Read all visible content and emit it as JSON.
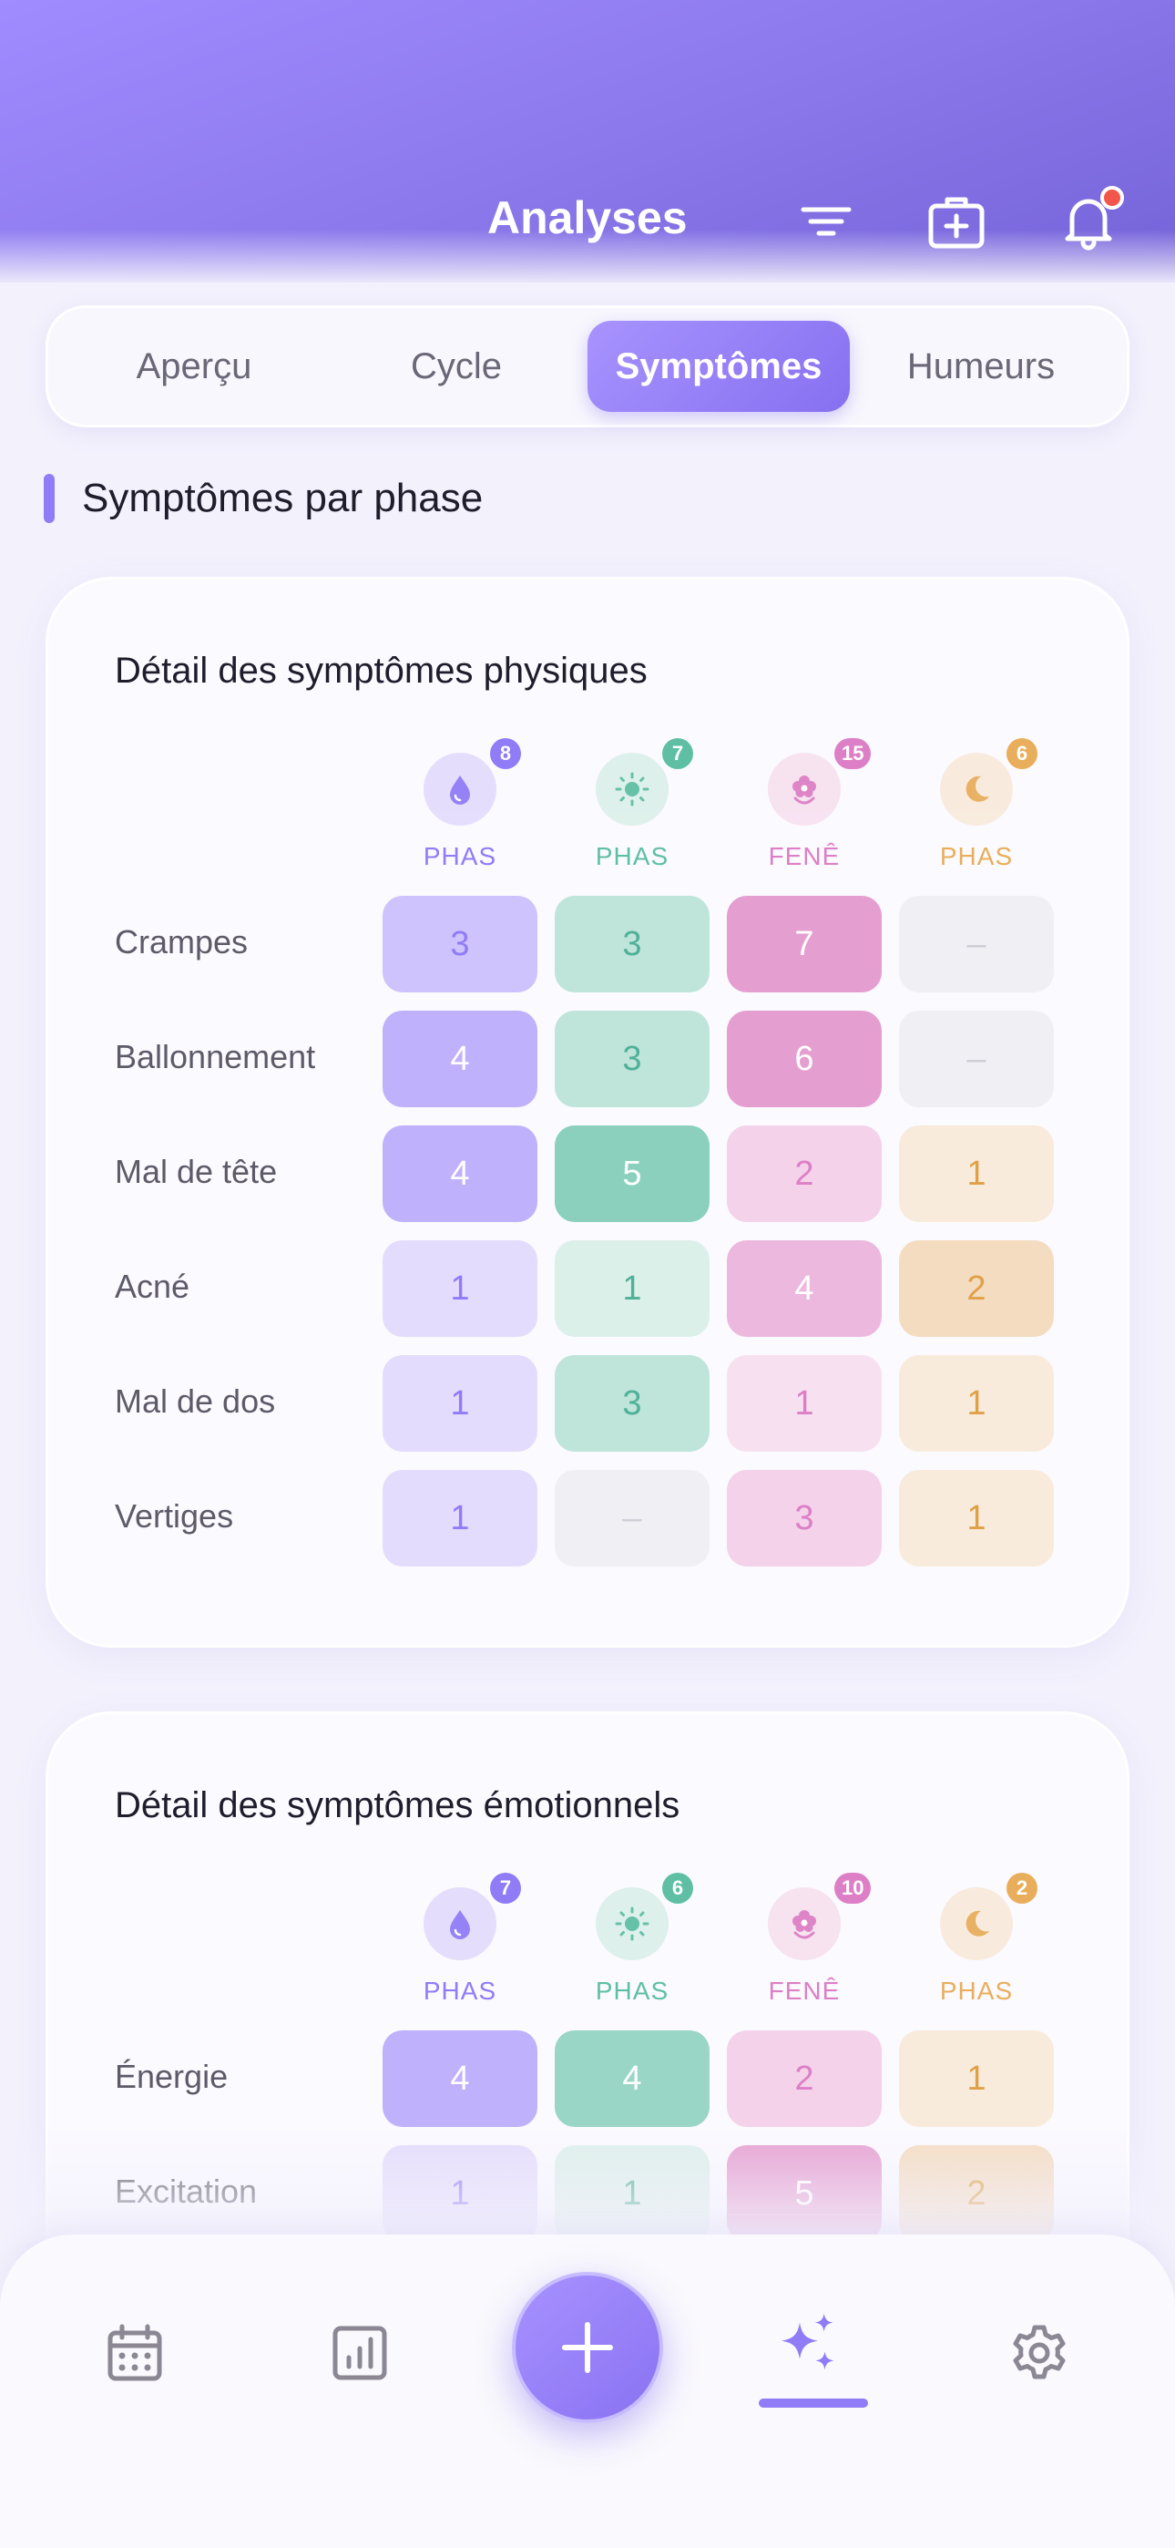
{
  "header": {
    "title": "Analyses"
  },
  "tabs": [
    {
      "label": "Aperçu"
    },
    {
      "label": "Cycle"
    },
    {
      "label": "Symptômes"
    },
    {
      "label": "Humeurs"
    }
  ],
  "section": {
    "title": "Symptômes par phase"
  },
  "phases": [
    {
      "label": "PHAS",
      "icon": "drop-icon",
      "color": "#8f7cf6"
    },
    {
      "label": "PHAS",
      "icon": "sun-icon",
      "color": "#5fbfa5"
    },
    {
      "label": "FENÊ",
      "icon": "flower-icon",
      "color": "#dd7fc6"
    },
    {
      "label": "PHAS",
      "icon": "moon-icon",
      "color": "#e8ae5b"
    }
  ],
  "physical": {
    "title": "Détail des symptômes physiques",
    "badges": [
      "8",
      "7",
      "15",
      "6"
    ],
    "rows": [
      {
        "label": "Crampes",
        "values": [
          "3",
          "3",
          "7",
          "–"
        ]
      },
      {
        "label": "Ballonnement",
        "values": [
          "4",
          "3",
          "6",
          "–"
        ]
      },
      {
        "label": "Mal de tête",
        "values": [
          "4",
          "5",
          "2",
          "1"
        ]
      },
      {
        "label": "Acné",
        "values": [
          "1",
          "1",
          "4",
          "2"
        ]
      },
      {
        "label": "Mal de dos",
        "values": [
          "1",
          "3",
          "1",
          "1"
        ]
      },
      {
        "label": "Vertiges",
        "values": [
          "1",
          "–",
          "3",
          "1"
        ]
      }
    ]
  },
  "emotional": {
    "title": "Détail des symptômes émotionnels",
    "badges": [
      "7",
      "6",
      "10",
      "2"
    ],
    "rows": [
      {
        "label": "Énergie",
        "values": [
          "4",
          "4",
          "2",
          "1"
        ]
      },
      {
        "label": "Excitation",
        "values": [
          "1",
          "1",
          "5",
          "2"
        ]
      }
    ]
  },
  "nav": {
    "items": [
      "calendar-icon",
      "stats-icon",
      "add-icon",
      "sparkles-icon",
      "settings-icon"
    ],
    "active": "sparkles-icon"
  }
}
